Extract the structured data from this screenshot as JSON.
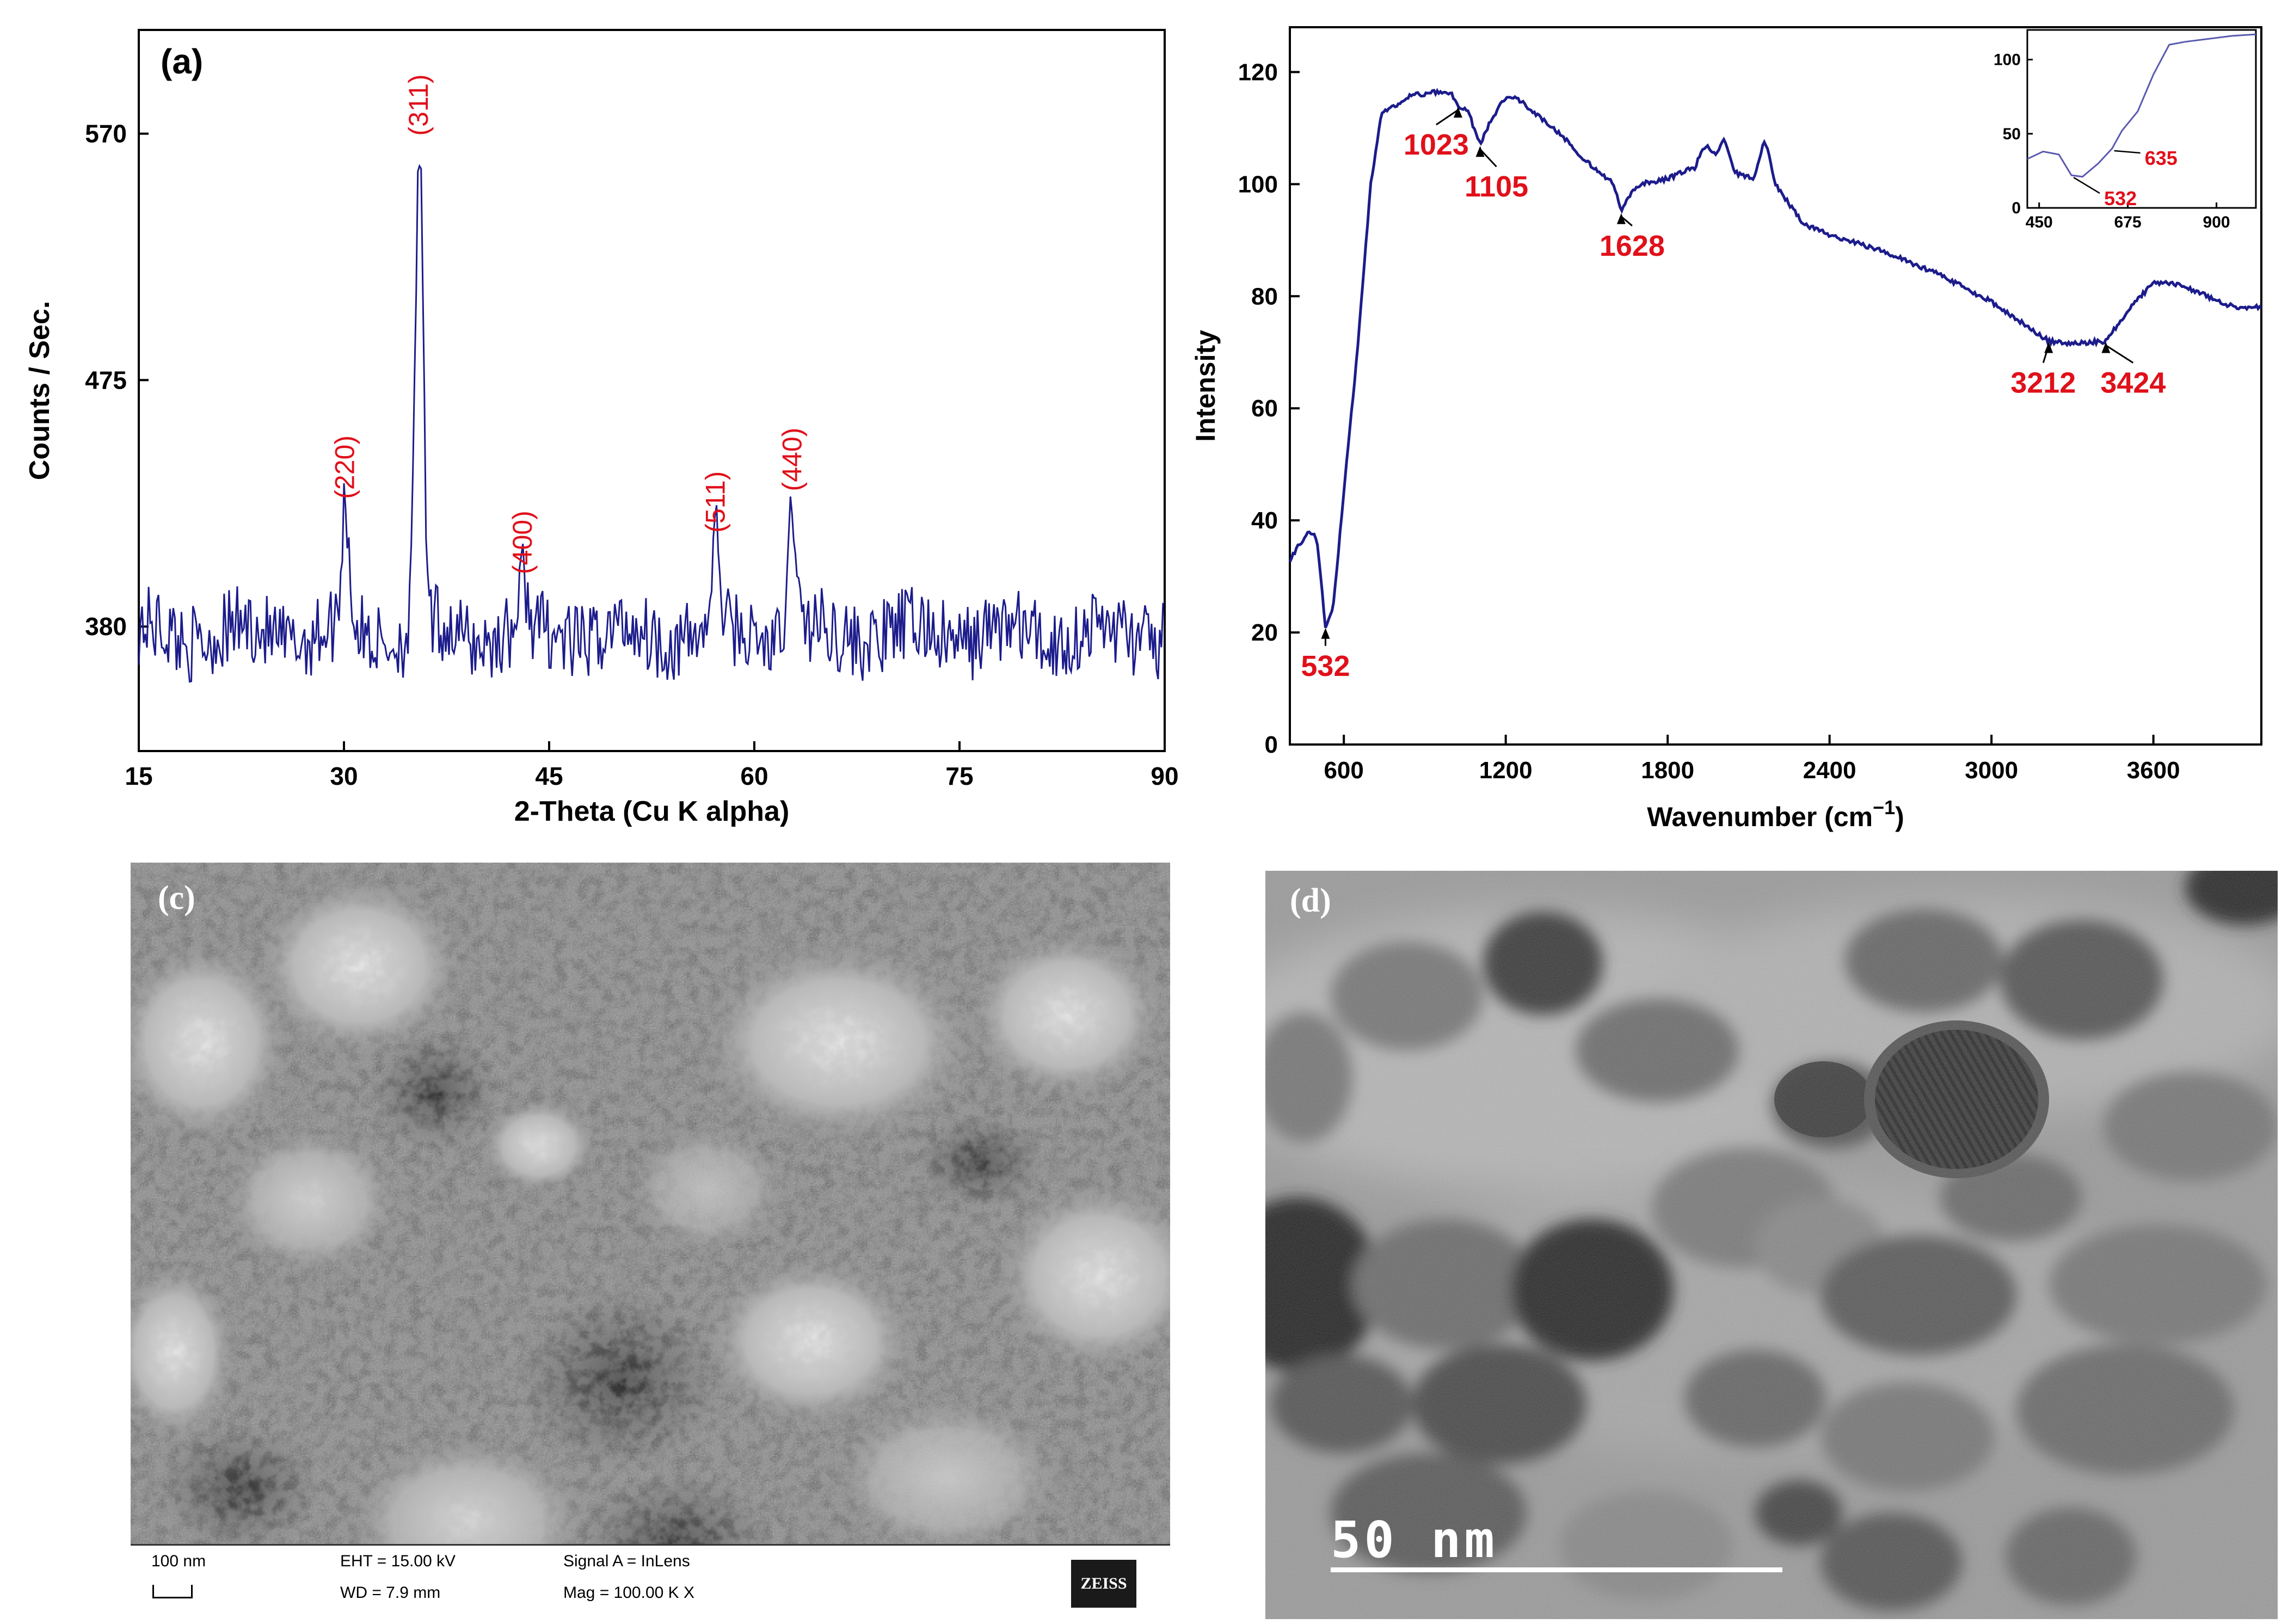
{
  "panel_a": {
    "letter": "(a)",
    "chart_data": {
      "type": "line",
      "xlabel": "2-Theta (Cu K alpha)",
      "ylabel": "Counts / Sec.",
      "xlim": [
        15,
        90
      ],
      "ylim": [
        332,
        610
      ],
      "x_ticks": [
        15,
        30,
        45,
        60,
        75,
        90
      ],
      "y_ticks": [
        380,
        475,
        570
      ],
      "peaks": [
        {
          "x": 30.1,
          "y": 425,
          "label": "(220)"
        },
        {
          "x": 35.5,
          "y": 565,
          "label": "(311)"
        },
        {
          "x": 43.1,
          "y": 396,
          "label": "(400)"
        },
        {
          "x": 57.2,
          "y": 412,
          "label": "(511)"
        },
        {
          "x": 62.8,
          "y": 428,
          "label": "(440)"
        }
      ],
      "baseline": 377,
      "line_color": "#1c1c8c",
      "label_color": "#e0101a"
    }
  },
  "panel_b": {
    "chart_data": {
      "type": "line",
      "xlabel": "Wavenumber (cm",
      "xlabel_sup": "−1",
      "xlabel_end": ")",
      "ylabel": "Intensity",
      "xlim": [
        400,
        4000
      ],
      "ylim": [
        0,
        128
      ],
      "x_ticks": [
        600,
        1200,
        1800,
        2400,
        3000,
        3600
      ],
      "y_ticks": [
        0,
        20,
        40,
        60,
        80,
        100,
        120
      ],
      "points": [
        [
          400,
          33
        ],
        [
          440,
          36
        ],
        [
          470,
          38
        ],
        [
          500,
          37
        ],
        [
          532,
          21
        ],
        [
          560,
          24
        ],
        [
          600,
          45
        ],
        [
          650,
          70
        ],
        [
          700,
          100
        ],
        [
          740,
          113
        ],
        [
          800,
          114
        ],
        [
          850,
          116
        ],
        [
          900,
          116
        ],
        [
          950,
          116.5
        ],
        [
          1000,
          116
        ],
        [
          1023,
          114
        ],
        [
          1060,
          113
        ],
        [
          1105,
          107
        ],
        [
          1140,
          111
        ],
        [
          1200,
          115.5
        ],
        [
          1240,
          115.5
        ],
        [
          1300,
          113
        ],
        [
          1400,
          109
        ],
        [
          1500,
          104
        ],
        [
          1600,
          100
        ],
        [
          1628,
          95
        ],
        [
          1660,
          98
        ],
        [
          1700,
          100
        ],
        [
          1800,
          101
        ],
        [
          1900,
          103
        ],
        [
          1940,
          107
        ],
        [
          1980,
          105
        ],
        [
          2010,
          108
        ],
        [
          2050,
          102
        ],
        [
          2120,
          101
        ],
        [
          2160,
          108
        ],
        [
          2200,
          100
        ],
        [
          2300,
          93
        ],
        [
          2400,
          91
        ],
        [
          2600,
          88
        ],
        [
          2800,
          84
        ],
        [
          3000,
          79
        ],
        [
          3150,
          74
        ],
        [
          3212,
          72
        ],
        [
          3300,
          71.5
        ],
        [
          3424,
          72
        ],
        [
          3500,
          77
        ],
        [
          3600,
          82.5
        ],
        [
          3700,
          82
        ],
        [
          3800,
          80
        ],
        [
          3900,
          78
        ],
        [
          4000,
          78
        ]
      ],
      "annotations": [
        {
          "x": 532,
          "label": "532"
        },
        {
          "x": 1023,
          "label": "1023"
        },
        {
          "x": 1105,
          "label": "1105"
        },
        {
          "x": 1628,
          "label": "1628"
        },
        {
          "x": 3212,
          "label": "3212"
        },
        {
          "x": 3424,
          "label": "3424"
        }
      ],
      "inset": {
        "xlim": [
          420,
          1000
        ],
        "ylim": [
          0,
          120
        ],
        "x_ticks": [
          450,
          675,
          900
        ],
        "y_ticks": [
          0,
          50,
          100
        ],
        "points": [
          [
            420,
            33
          ],
          [
            460,
            38
          ],
          [
            500,
            36
          ],
          [
            532,
            22
          ],
          [
            560,
            21
          ],
          [
            600,
            30
          ],
          [
            635,
            40
          ],
          [
            660,
            52
          ],
          [
            700,
            65
          ],
          [
            740,
            90
          ],
          [
            780,
            110
          ],
          [
            820,
            112
          ],
          [
            880,
            114
          ],
          [
            940,
            116
          ],
          [
            1000,
            117
          ]
        ],
        "annotations": [
          {
            "x": 532,
            "label": "532"
          },
          {
            "x": 635,
            "label": "635"
          }
        ]
      },
      "line_color": "#1c1c8c",
      "label_color": "#e0101a"
    }
  },
  "panel_c": {
    "letter": "(c)",
    "scale_label": "100 nm",
    "eht": "EHT = 15.00 kV",
    "wd": "WD =  7.9 mm",
    "signal": "Signal A = InLens",
    "mag": "Mag = 100.00 K X",
    "brand": "ZEISS"
  },
  "panel_d": {
    "letter": "(d)",
    "scale_label": "50  nm"
  }
}
